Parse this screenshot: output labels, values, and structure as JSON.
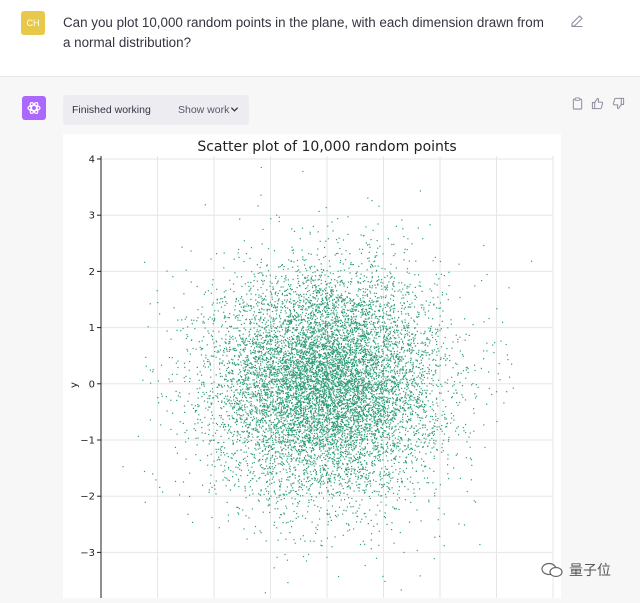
{
  "user": {
    "initials": "CH",
    "message": "Can you plot 10,000 random points in the plane, with each dimension drawn from a normal distribution?"
  },
  "assistant": {
    "status": "Finished working",
    "show_work": "Show work"
  },
  "icons": {
    "edit": "edit-icon",
    "copy": "clipboard-icon",
    "like": "thumbs-up-icon",
    "dislike": "thumbs-down-icon",
    "logo": "openai-logo-icon",
    "chevron": "chevron-down-icon"
  },
  "colors": {
    "accent": "#ab68ff",
    "points": "#2e9c78",
    "user_avatar": "#e8c84a"
  },
  "chart_data": {
    "type": "scatter",
    "title": "Scatter plot of 10,000 random points",
    "xlabel": "",
    "ylabel": "y",
    "n_points": 10000,
    "distribution": "standard normal",
    "yticks": [
      "4",
      "3",
      "2",
      "1",
      "0",
      "−1",
      "−2",
      "−3"
    ],
    "ylim": [
      -3.8,
      4.1
    ],
    "xlim": [
      -4,
      4
    ],
    "grid": true
  },
  "watermark": "量子位"
}
